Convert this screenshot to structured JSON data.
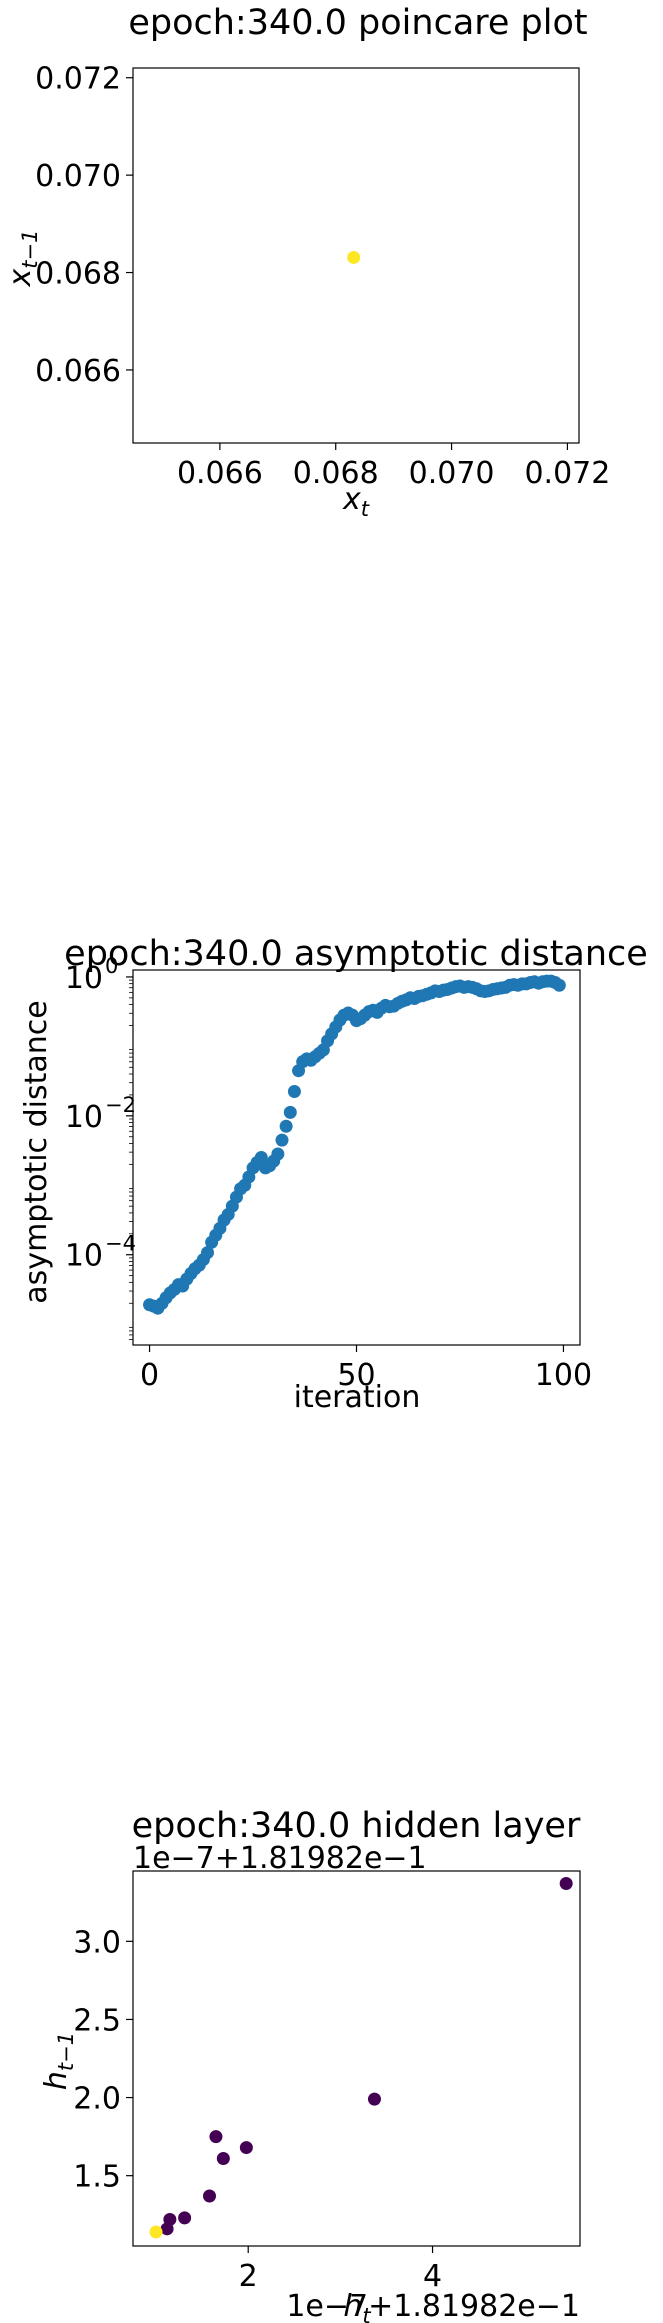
{
  "chart_data": [
    {
      "type": "scatter",
      "title": "epoch:340.0 poincare plot",
      "xlabel_base": "x",
      "xlabel_sub": "t",
      "ylabel_base": "x",
      "ylabel_sub": "t−1",
      "xlim": [
        0.0645,
        0.0722
      ],
      "ylim": [
        0.0645,
        0.0722
      ],
      "xticks": [
        0.066,
        0.068,
        0.07,
        0.072
      ],
      "xtick_labels": [
        "0.066",
        "0.068",
        "0.070",
        "0.072"
      ],
      "yticks": [
        0.066,
        0.068,
        0.07,
        0.072
      ],
      "ytick_labels": [
        "0.066",
        "0.068",
        "0.070",
        "0.072"
      ],
      "grid": false,
      "colors": [
        "#fde725"
      ],
      "points": [
        [
          0.06831,
          0.06831
        ]
      ]
    },
    {
      "type": "scatter",
      "title": "epoch:340.0 asymptotic distance",
      "xlabel": "iteration",
      "ylabel": "asymptotic distance",
      "yscale": "log",
      "xlim": [
        -4,
        104
      ],
      "ylim_log10": [
        -5.3,
        0.1
      ],
      "xticks": [
        0,
        50,
        100
      ],
      "xtick_labels": [
        "0",
        "50",
        "100"
      ],
      "yticks_log10": [
        0,
        -2,
        -4
      ],
      "ytick_base": "10",
      "ytick_exponents": [
        "0",
        "−2",
        "−4"
      ],
      "grid": false,
      "color": "#1f77b4",
      "x": [
        0,
        1,
        2,
        3,
        4,
        5,
        6,
        7,
        8,
        9,
        10,
        11,
        12,
        13,
        14,
        15,
        16,
        17,
        18,
        19,
        20,
        21,
        22,
        23,
        24,
        25,
        26,
        27,
        28,
        29,
        30,
        31,
        32,
        33,
        34,
        35,
        36,
        37,
        38,
        39,
        40,
        41,
        42,
        43,
        44,
        45,
        46,
        47,
        48,
        49,
        50,
        51,
        52,
        53,
        54,
        55,
        56,
        57,
        58,
        59,
        60,
        61,
        62,
        63,
        64,
        65,
        66,
        67,
        68,
        69,
        70,
        71,
        72,
        73,
        74,
        75,
        76,
        77,
        78,
        79,
        80,
        81,
        82,
        83,
        84,
        85,
        86,
        87,
        88,
        89,
        90,
        91,
        92,
        93,
        94,
        95,
        96,
        97,
        98,
        99
      ],
      "y_log10": [
        -4.72,
        -4.74,
        -4.77,
        -4.7,
        -4.62,
        -4.55,
        -4.5,
        -4.43,
        -4.45,
        -4.35,
        -4.27,
        -4.2,
        -4.15,
        -4.07,
        -3.97,
        -3.82,
        -3.72,
        -3.62,
        -3.5,
        -3.42,
        -3.3,
        -3.17,
        -3.05,
        -3.0,
        -2.88,
        -2.75,
        -2.67,
        -2.6,
        -2.75,
        -2.72,
        -2.65,
        -2.55,
        -2.35,
        -2.15,
        -1.95,
        -1.65,
        -1.35,
        -1.22,
        -1.18,
        -1.2,
        -1.15,
        -1.1,
        -1.05,
        -0.92,
        -0.82,
        -0.72,
        -0.62,
        -0.55,
        -0.52,
        -0.55,
        -0.63,
        -0.6,
        -0.55,
        -0.5,
        -0.48,
        -0.51,
        -0.45,
        -0.41,
        -0.43,
        -0.42,
        -0.38,
        -0.35,
        -0.33,
        -0.3,
        -0.31,
        -0.28,
        -0.27,
        -0.25,
        -0.23,
        -0.2,
        -0.21,
        -0.19,
        -0.18,
        -0.16,
        -0.14,
        -0.13,
        -0.15,
        -0.14,
        -0.15,
        -0.17,
        -0.2,
        -0.21,
        -0.2,
        -0.18,
        -0.17,
        -0.16,
        -0.15,
        -0.12,
        -0.11,
        -0.12,
        -0.1,
        -0.1,
        -0.08,
        -0.07,
        -0.09,
        -0.07,
        -0.06,
        -0.06,
        -0.08,
        -0.12
      ]
    },
    {
      "type": "scatter",
      "title": "epoch:340.0 hidden layer",
      "xlabel_base": "h",
      "xlabel_sub": "t",
      "ylabel_base": "h",
      "ylabel_sub": "t−1",
      "x_offset_text": "1e−7+1.81982e−1",
      "y_offset_text": "1e−7+1.81982e−1",
      "xlim": [
        0.75,
        5.6
      ],
      "ylim": [
        1.05,
        3.45
      ],
      "xticks": [
        2,
        4
      ],
      "xtick_labels": [
        "2",
        "4"
      ],
      "yticks": [
        1.5,
        2.0,
        2.5,
        3.0
      ],
      "ytick_labels": [
        "1.5",
        "2.0",
        "2.5",
        "3.0"
      ],
      "grid": false,
      "colors": [
        "#440154",
        "#fde725"
      ],
      "points": [
        [
          5.45,
          3.37,
          0
        ],
        [
          3.37,
          1.99,
          0
        ],
        [
          1.98,
          1.68,
          0
        ],
        [
          1.65,
          1.75,
          0
        ],
        [
          1.73,
          1.61,
          0
        ],
        [
          1.58,
          1.37,
          0
        ],
        [
          1.31,
          1.23,
          0
        ],
        [
          1.15,
          1.22,
          0
        ],
        [
          1.12,
          1.16,
          0
        ],
        [
          1.0,
          1.14,
          1
        ]
      ]
    }
  ]
}
